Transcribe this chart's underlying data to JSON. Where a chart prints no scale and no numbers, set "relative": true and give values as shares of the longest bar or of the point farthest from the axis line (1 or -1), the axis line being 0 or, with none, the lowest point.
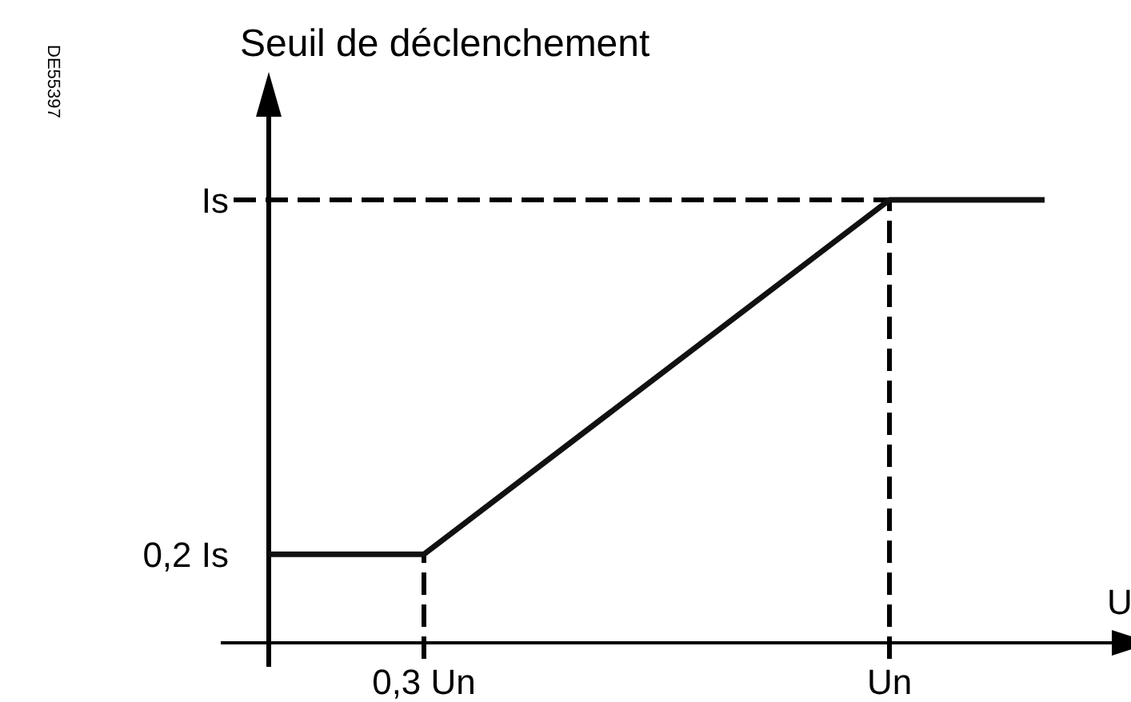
{
  "chart_data": {
    "type": "line",
    "relative": true,
    "ylabel": "Seuil de déclenchement",
    "xlabel": "U",
    "categories": [
      null,
      null,
      "0,3 Un",
      null,
      null,
      null,
      null,
      null,
      "Un",
      null,
      null
    ],
    "series": [
      {
        "color": "#111111",
        "values": [
          0.2,
          null,
          0.2,
          null,
          null,
          null,
          null,
          null,
          1,
          null,
          1
        ]
      }
    ],
    "ref_lines": [
      {
        "axis": "y",
        "value": 1,
        "label": "Is",
        "line_style": "dashed"
      },
      {
        "axis": "x",
        "value": "0,3 Un",
        "line_style": "dashed"
      },
      {
        "axis": "x",
        "value": "Un",
        "line_style": "dashed"
      }
    ],
    "annotations": [
      "DE55397",
      "0,2 Is"
    ],
    "grid": false,
    "marker": "none",
    "line_style": "solid"
  }
}
